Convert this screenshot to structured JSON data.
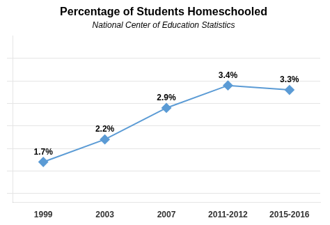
{
  "chart_data": {
    "type": "line",
    "title": "Percentage of Students Homeschooled",
    "subtitle": "National Center of Education Statistics",
    "categories": [
      "1999",
      "2003",
      "2007",
      "2011-2012",
      "2015-2016"
    ],
    "values": [
      1.7,
      2.2,
      2.9,
      3.4,
      3.3
    ],
    "value_labels": [
      "1.7%",
      "2.2%",
      "2.9%",
      "3.4%",
      "3.3%"
    ],
    "data_labels": true,
    "color": "#5b9bd5",
    "marker": "diamond",
    "ylim": [
      0.8,
      4.5
    ],
    "yticks": [
      1,
      1.5,
      2,
      2.5,
      3,
      3.5,
      4
    ],
    "grid": true,
    "tick_labels": "x"
  }
}
